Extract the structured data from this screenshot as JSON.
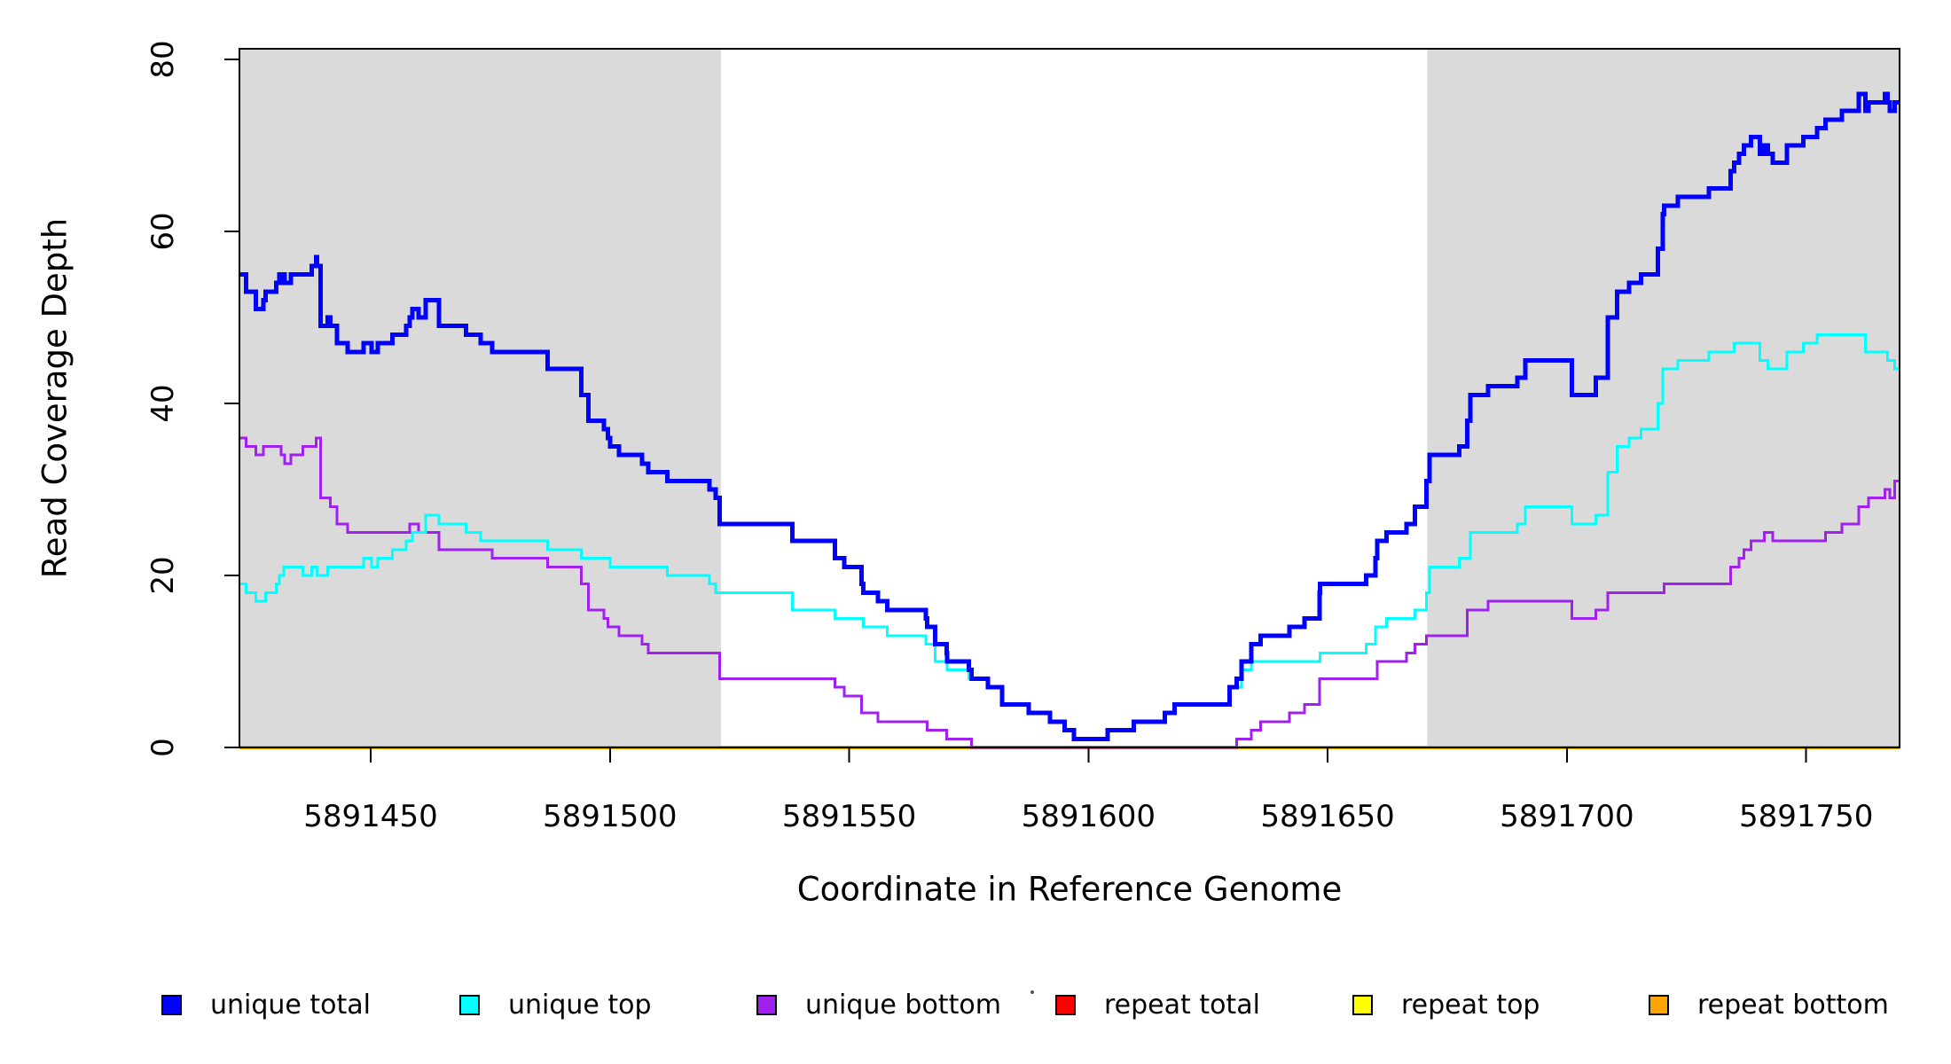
{
  "chart_data": {
    "type": "line",
    "subtype": "step-after-coverage-plot",
    "title": "",
    "xlabel": "Coordinate in Reference Genome",
    "ylabel": "Read Coverage Depth",
    "x_axis": {
      "min": 5891422.6,
      "max": 5891769.5,
      "ticks": [
        {
          "value": 5891450,
          "label": "5891450"
        },
        {
          "value": 5891500,
          "label": "5891500"
        },
        {
          "value": 5891550,
          "label": "5891550"
        },
        {
          "value": 5891600,
          "label": "5891600"
        },
        {
          "value": 5891650,
          "label": "5891650"
        },
        {
          "value": 5891700,
          "label": "5891700"
        },
        {
          "value": 5891750,
          "label": "5891750"
        }
      ]
    },
    "y_axis": {
      "min": 0,
      "max": 81.2,
      "ticks": [
        {
          "value": 0,
          "label": "0"
        },
        {
          "value": 20,
          "label": "20"
        },
        {
          "value": 40,
          "label": "40"
        },
        {
          "value": 60,
          "label": "60"
        },
        {
          "value": 80,
          "label": "80"
        }
      ]
    },
    "grid": false,
    "background_color": "#ffffff",
    "shaded_region_color": "#dadada",
    "shaded_regions": [
      {
        "from": 5891422.6,
        "to": 5891523.2,
        "meaning": "repeat-flank-left"
      },
      {
        "from": 5891670.8,
        "to": 5891769.5,
        "meaning": "repeat-flank-right"
      }
    ],
    "series": [
      {
        "name": "repeat total",
        "color": "#FF0000",
        "width": 3,
        "constant": 0
      },
      {
        "name": "repeat top",
        "color": "#FFFF00",
        "width": 3,
        "constant": 0
      },
      {
        "name": "repeat bottom",
        "color": "#FFA500",
        "width": 4,
        "constant": 0
      },
      {
        "name": "unique bottom",
        "color": "#A020F0",
        "width": 3,
        "points": [
          [
            5891422.6,
            36
          ],
          [
            5891424,
            35
          ],
          [
            5891426,
            34
          ],
          [
            5891427.6,
            35
          ],
          [
            5891431.3,
            34
          ],
          [
            5891432,
            33
          ],
          [
            5891433.3,
            34
          ],
          [
            5891435.8,
            35
          ],
          [
            5891438.6,
            36
          ],
          [
            5891439.5,
            29
          ],
          [
            5891441.6,
            28
          ],
          [
            5891443,
            26
          ],
          [
            5891445.2,
            25
          ],
          [
            5891458.2,
            26
          ],
          [
            5891460,
            25
          ],
          [
            5891464.3,
            23
          ],
          [
            5891475.4,
            22
          ],
          [
            5891487,
            21
          ],
          [
            5891494,
            19
          ],
          [
            5891495.5,
            16
          ],
          [
            5891498.7,
            15
          ],
          [
            5891499.6,
            14
          ],
          [
            5891501.9,
            13
          ],
          [
            5891506.7,
            12
          ],
          [
            5891508,
            11
          ],
          [
            5891522.9,
            8
          ],
          [
            5891547,
            7
          ],
          [
            5891549,
            6
          ],
          [
            5891552.6,
            4
          ],
          [
            5891556,
            3
          ],
          [
            5891566.3,
            2
          ],
          [
            5891570.4,
            1
          ],
          [
            5891575.6,
            0
          ],
          [
            5891631,
            1
          ],
          [
            5891634,
            2
          ],
          [
            5891636,
            3
          ],
          [
            5891642,
            4
          ],
          [
            5891645.2,
            5
          ],
          [
            5891648.3,
            8
          ],
          [
            5891660.4,
            10
          ],
          [
            5891666.5,
            11
          ],
          [
            5891668.2,
            12
          ],
          [
            5891670.6,
            13
          ],
          [
            5891679.2,
            16
          ],
          [
            5891683.5,
            17
          ],
          [
            5891701,
            15
          ],
          [
            5891706,
            16
          ],
          [
            5891708.5,
            18
          ],
          [
            5891720.3,
            19
          ],
          [
            5891734.2,
            21
          ],
          [
            5891736,
            22
          ],
          [
            5891737,
            23
          ],
          [
            5891738.5,
            24
          ],
          [
            5891741.3,
            25
          ],
          [
            5891743,
            24
          ],
          [
            5891754,
            25
          ],
          [
            5891757.5,
            26
          ],
          [
            5891761,
            28
          ],
          [
            5891763,
            29
          ],
          [
            5891766.5,
            30
          ],
          [
            5891767.5,
            29
          ],
          [
            5891768.5,
            31
          ]
        ]
      },
      {
        "name": "unique top",
        "color": "#00FFFF",
        "width": 3,
        "points": [
          [
            5891422.6,
            19
          ],
          [
            5891424,
            18
          ],
          [
            5891426,
            17
          ],
          [
            5891428,
            18
          ],
          [
            5891430.3,
            19
          ],
          [
            5891430.9,
            20
          ],
          [
            5891431.8,
            21
          ],
          [
            5891435.8,
            20
          ],
          [
            5891437.7,
            21
          ],
          [
            5891438.8,
            20
          ],
          [
            5891441,
            21
          ],
          [
            5891448.5,
            22
          ],
          [
            5891450.2,
            21
          ],
          [
            5891451.5,
            22
          ],
          [
            5891454.5,
            23
          ],
          [
            5891457.4,
            24
          ],
          [
            5891458.7,
            25
          ],
          [
            5891461.5,
            27
          ],
          [
            5891464.3,
            26
          ],
          [
            5891469.9,
            25
          ],
          [
            5891473,
            24
          ],
          [
            5891487,
            23
          ],
          [
            5891494,
            22
          ],
          [
            5891500,
            21
          ],
          [
            5891512,
            20
          ],
          [
            5891520.8,
            19
          ],
          [
            5891522.1,
            18
          ],
          [
            5891538.1,
            16
          ],
          [
            5891547,
            15
          ],
          [
            5891553,
            14
          ],
          [
            5891558,
            13
          ],
          [
            5891566,
            12
          ],
          [
            5891568,
            10
          ],
          [
            5891570.5,
            9
          ],
          [
            5891575,
            8
          ],
          [
            5891579,
            7
          ],
          [
            5891582,
            5
          ],
          [
            5891587.5,
            4
          ],
          [
            5891592,
            3
          ],
          [
            5891595,
            2
          ],
          [
            5891597,
            1
          ],
          [
            5891604,
            2
          ],
          [
            5891609.5,
            3
          ],
          [
            5891616,
            4
          ],
          [
            5891618,
            5
          ],
          [
            5891629.5,
            7
          ],
          [
            5891632,
            9
          ],
          [
            5891634,
            10
          ],
          [
            5891648.4,
            11
          ],
          [
            5891658,
            12
          ],
          [
            5891660,
            14
          ],
          [
            5891662.3,
            15
          ],
          [
            5891668.2,
            16
          ],
          [
            5891670.6,
            18
          ],
          [
            5891671.3,
            21
          ],
          [
            5891677.5,
            22
          ],
          [
            5891679.8,
            25
          ],
          [
            5891689.6,
            26
          ],
          [
            5891691.3,
            28
          ],
          [
            5891701,
            26
          ],
          [
            5891706,
            27
          ],
          [
            5891708.5,
            32
          ],
          [
            5891710.5,
            35
          ],
          [
            5891713,
            36
          ],
          [
            5891715.5,
            37
          ],
          [
            5891719,
            40
          ],
          [
            5891720,
            44
          ],
          [
            5891723.2,
            45
          ],
          [
            5891729.7,
            46
          ],
          [
            5891735,
            47
          ],
          [
            5891740.3,
            45
          ],
          [
            5891742,
            44
          ],
          [
            5891746,
            46
          ],
          [
            5891749.4,
            47
          ],
          [
            5891752.3,
            48
          ],
          [
            5891762.4,
            46
          ],
          [
            5891767,
            45
          ],
          [
            5891768.5,
            44
          ]
        ]
      },
      {
        "name": "unique total",
        "color": "#0000FF",
        "width": 5,
        "derived": "sum",
        "sum_of": [
          "unique top",
          "unique bottom"
        ]
      }
    ]
  },
  "legend": {
    "items": [
      {
        "label": "unique total",
        "color": "#0000FF"
      },
      {
        "label": "unique top",
        "color": "#00FFFF"
      },
      {
        "label": "unique bottom",
        "color": "#A020F0"
      },
      {
        "label": "repeat total",
        "color": "#FF0000"
      },
      {
        "label": "repeat top",
        "color": "#FFFF00"
      },
      {
        "label": "repeat bottom",
        "color": "#FFA500"
      }
    ]
  },
  "axis_color": "#000000",
  "tick_label_color": "#000000"
}
